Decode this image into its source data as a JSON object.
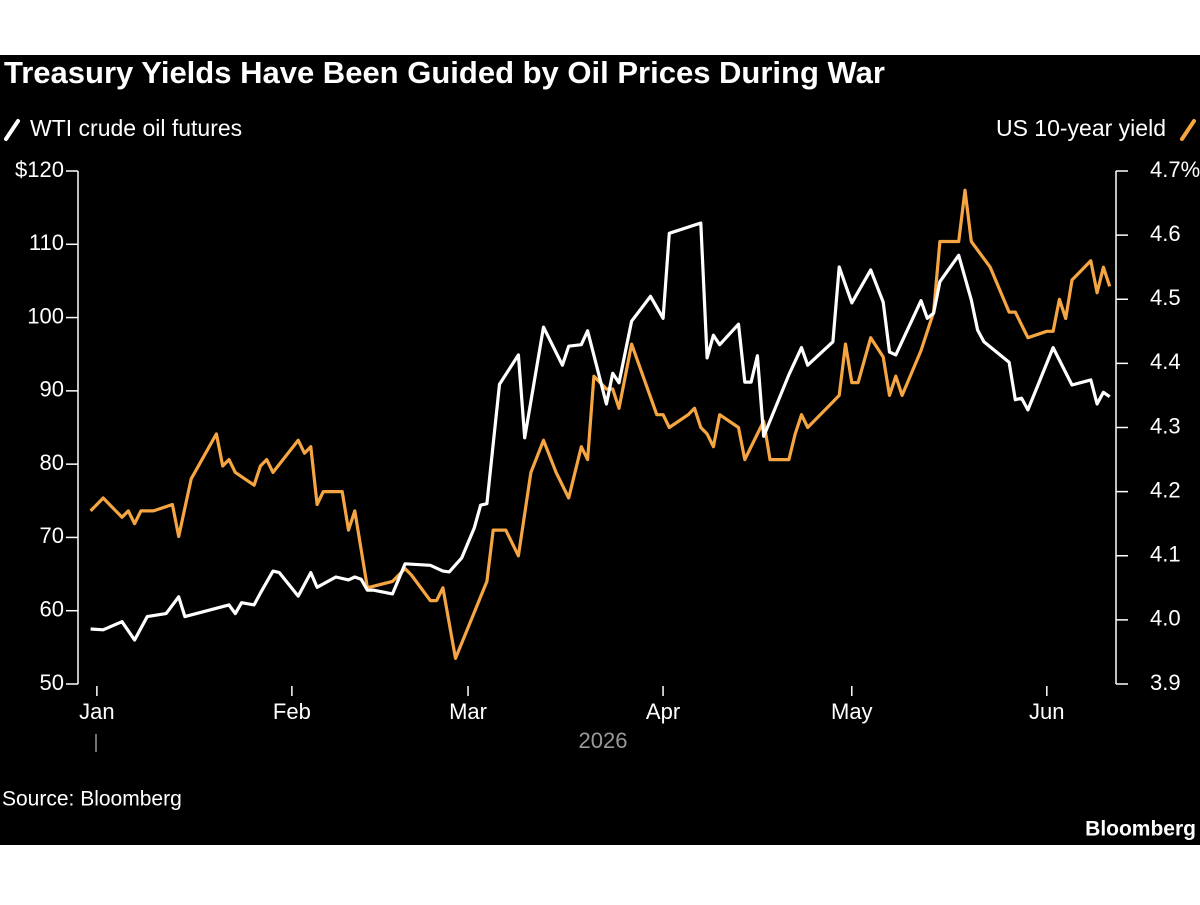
{
  "chart_data": {
    "type": "line",
    "title": "Treasury Yields Have Been Guided by Oil Prices During War",
    "xlabel": "2026",
    "source": "Source: Bloomberg",
    "brand": "Bloomberg",
    "xlim": [
      -3,
      162
    ],
    "xticks": [
      {
        "value": 0,
        "label": "Jan"
      },
      {
        "value": 31,
        "label": "Feb"
      },
      {
        "value": 59,
        "label": "Mar"
      },
      {
        "value": 90,
        "label": "Apr"
      },
      {
        "value": 120,
        "label": "May"
      },
      {
        "value": 151,
        "label": "Jun"
      }
    ],
    "ylim": [
      50,
      120
    ],
    "yticks": [
      {
        "value": 120,
        "label": "$120"
      },
      110,
      100,
      90,
      80,
      70,
      60,
      50
    ],
    "y2lim": [
      3.9,
      4.7
    ],
    "y2ticks": [
      {
        "value": 4.7,
        "label": "4.7%"
      },
      4.6,
      4.5,
      4.4,
      4.3,
      4.2,
      4.1,
      {
        "value": 4,
        "label": "4.0"
      },
      3.9
    ],
    "series": [
      {
        "name": "WTI crude oil futures",
        "color": "#ffffff",
        "axis": "y",
        "x": [
          -1,
          1,
          4,
          6,
          8,
          11,
          13,
          14,
          21,
          22,
          23,
          25,
          26,
          28,
          29,
          32,
          34,
          35,
          38,
          40,
          41,
          42,
          43,
          44,
          47,
          49,
          53,
          55,
          56,
          58,
          60,
          61,
          62,
          64,
          67,
          68,
          71,
          74,
          75,
          77,
          78,
          81,
          82,
          83,
          85,
          88,
          90,
          91,
          96,
          97,
          98,
          99,
          102,
          103,
          104,
          105,
          106,
          110,
          112,
          113,
          117,
          118,
          120,
          123,
          125,
          126,
          127,
          131,
          132,
          133,
          134,
          137,
          139,
          140,
          141,
          145,
          146,
          147,
          148,
          152,
          155,
          158,
          159,
          160,
          161
        ],
        "values": [
          57.5,
          57.4,
          58.5,
          56.0,
          59.2,
          59.6,
          61.9,
          59.2,
          60.8,
          59.6,
          61.1,
          60.8,
          62.4,
          65.4,
          65.2,
          62.0,
          65.2,
          63.2,
          64.6,
          64.2,
          64.6,
          64.3,
          62.8,
          62.8,
          62.3,
          66.4,
          66.2,
          65.4,
          65.3,
          67.2,
          71.3,
          74.4,
          74.6,
          90.9,
          94.9,
          83.6,
          98.7,
          93.5,
          96.1,
          96.3,
          98.2,
          88.2,
          92.4,
          91.1,
          99.5,
          102.9,
          99.9,
          111.5,
          112.9,
          94.5,
          97.6,
          96.3,
          99.1,
          91.2,
          91.2,
          94.8,
          83.8,
          92.2,
          95.9,
          93.5,
          96.7,
          106.9,
          102.0,
          106.5,
          102.1,
          95.3,
          94.9,
          102.3,
          99.9,
          100.6,
          104.9,
          108.5,
          102.4,
          98.3,
          96.7,
          93.9,
          88.8,
          89.0,
          87.4,
          95.9,
          90.8,
          91.5,
          88.2,
          89.8,
          89.2
        ]
      },
      {
        "name": "US 10-year yield",
        "color": "#f5a542",
        "axis": "y2",
        "x": [
          -1,
          1,
          4,
          5,
          6,
          7,
          9,
          12,
          13,
          15,
          19,
          20,
          21,
          22,
          25,
          26,
          27,
          28,
          32,
          33,
          34,
          35,
          36,
          39,
          40,
          41,
          43,
          47,
          49,
          50,
          53,
          54,
          55,
          57,
          62,
          63,
          65,
          67,
          69,
          71,
          73,
          75,
          77,
          78,
          79,
          81,
          82,
          83,
          85,
          89,
          90,
          91,
          94,
          95,
          96,
          97,
          98,
          99,
          102,
          103,
          106,
          107,
          110,
          111,
          112,
          113,
          117,
          118,
          119,
          120,
          121,
          123,
          125,
          126,
          127,
          128,
          131,
          133,
          134,
          137,
          138,
          139,
          142,
          145,
          146,
          148,
          151,
          152,
          153,
          154,
          155,
          158,
          159,
          160,
          161
        ],
        "values": [
          4.17,
          4.19,
          4.16,
          4.17,
          4.15,
          4.17,
          4.17,
          4.18,
          4.13,
          4.22,
          4.29,
          4.24,
          4.25,
          4.23,
          4.21,
          4.24,
          4.25,
          4.23,
          4.28,
          4.26,
          4.27,
          4.18,
          4.2,
          4.2,
          4.14,
          4.17,
          4.05,
          4.06,
          4.08,
          4.07,
          4.03,
          4.03,
          4.05,
          3.94,
          4.06,
          4.14,
          4.14,
          4.1,
          4.23,
          4.28,
          4.23,
          4.19,
          4.27,
          4.25,
          4.38,
          4.36,
          4.36,
          4.33,
          4.43,
          4.32,
          4.32,
          4.3,
          4.32,
          4.33,
          4.3,
          4.29,
          4.27,
          4.32,
          4.3,
          4.25,
          4.31,
          4.25,
          4.25,
          4.29,
          4.32,
          4.3,
          4.34,
          4.35,
          4.43,
          4.37,
          4.37,
          4.44,
          4.41,
          4.35,
          4.38,
          4.35,
          4.42,
          4.48,
          4.59,
          4.59,
          4.67,
          4.59,
          4.55,
          4.48,
          4.48,
          4.44,
          4.45,
          4.45,
          4.5,
          4.47,
          4.53,
          4.56,
          4.51,
          4.55,
          4.52
        ]
      }
    ]
  }
}
